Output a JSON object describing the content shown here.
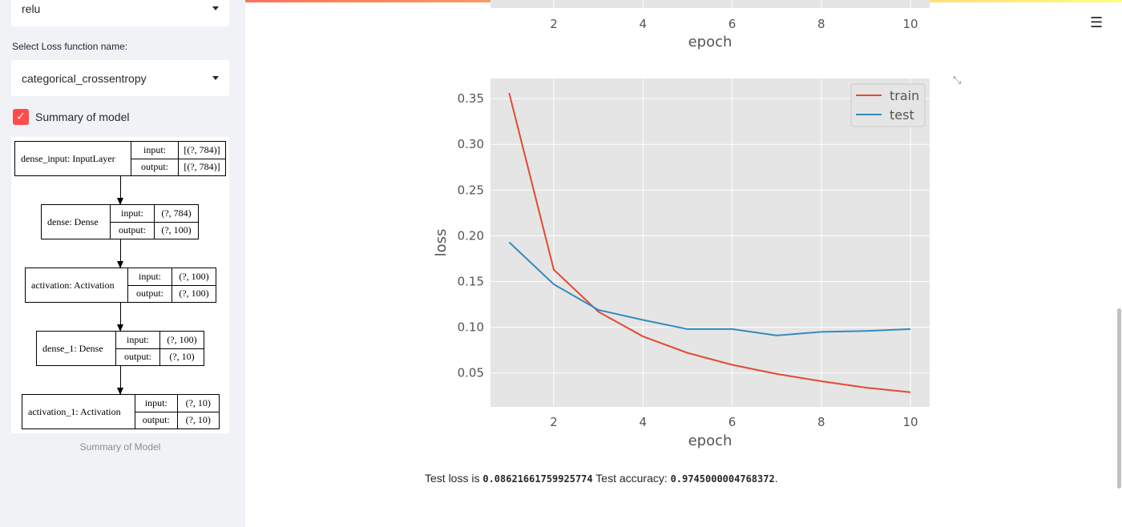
{
  "sidebar": {
    "activation_select": {
      "value": "relu"
    },
    "loss_label": "Select Loss function name:",
    "loss_select": {
      "value": "categorical_crossentropy"
    },
    "summary_checkbox": {
      "label": "Summary of model",
      "checked": true
    },
    "diagram": {
      "nodes": [
        {
          "name": "dense_input: InputLayer",
          "input": "[(?, 784)]",
          "output": "[(?, 784)]"
        },
        {
          "name": "dense: Dense",
          "input": "(?, 784)",
          "output": "(?, 100)"
        },
        {
          "name": "activation: Activation",
          "input": "(?, 100)",
          "output": "(?, 100)"
        },
        {
          "name": "dense_1: Dense",
          "input": "(?, 100)",
          "output": "(?, 10)"
        },
        {
          "name": "activation_1: Activation",
          "input": "(?, 10)",
          "output": "(?, 10)"
        }
      ],
      "input_label": "input:",
      "output_label": "output:"
    },
    "caption": "Summary of Model"
  },
  "header": {
    "menu_icon": "hamburger-icon"
  },
  "top_chart": {
    "xlabel": "epoch",
    "xticks": [
      "2",
      "4",
      "6",
      "8",
      "10"
    ]
  },
  "chart_data": {
    "type": "line",
    "xlabel": "epoch",
    "ylabel": "loss",
    "xlim": [
      0.58,
      10.43
    ],
    "ylim": [
      0.013,
      0.372
    ],
    "xticks": [
      2,
      4,
      6,
      8,
      10
    ],
    "yticks": [
      0.05,
      0.1,
      0.15,
      0.2,
      0.25,
      0.3,
      0.35
    ],
    "ytick_labels": [
      "0.05",
      "0.10",
      "0.15",
      "0.20",
      "0.25",
      "0.30",
      "0.35"
    ],
    "grid": true,
    "legend_placement": "top-right",
    "x": [
      1,
      2,
      3,
      4,
      5,
      6,
      7,
      8,
      9,
      10
    ],
    "series": [
      {
        "name": "train",
        "color": "#e24a33",
        "values": [
          0.356,
          0.163,
          0.117,
          0.09,
          0.072,
          0.059,
          0.049,
          0.041,
          0.034,
          0.029
        ]
      },
      {
        "name": "test",
        "color": "#348abd",
        "values": [
          0.193,
          0.147,
          0.119,
          0.108,
          0.098,
          0.098,
          0.091,
          0.095,
          0.096,
          0.098
        ]
      }
    ]
  },
  "result": {
    "loss_prefix": "Test loss is",
    "loss_value": "0.08621661759925774",
    "acc_prefix": "Test accuracy:",
    "acc_value": "0.9745000004768372",
    "suffix": "."
  }
}
